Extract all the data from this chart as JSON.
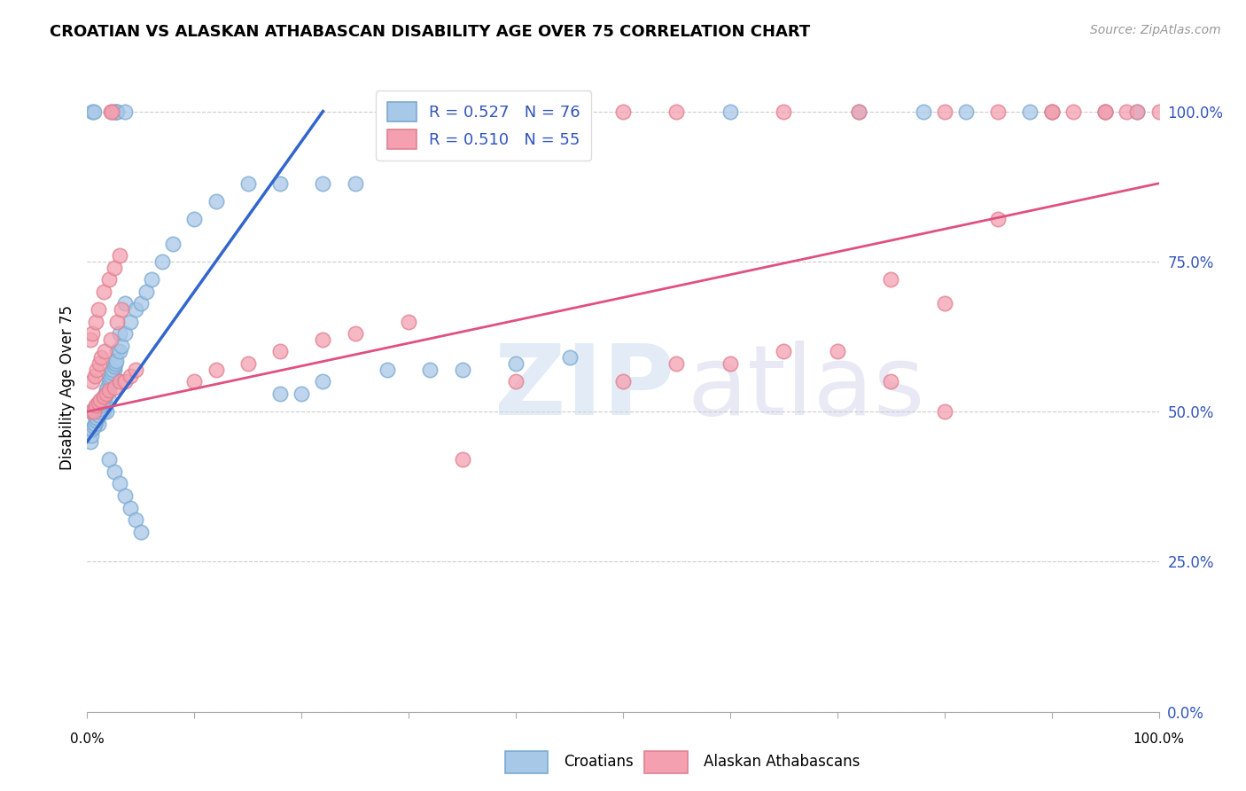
{
  "title": "CROATIAN VS ALASKAN ATHABASCAN DISABILITY AGE OVER 75 CORRELATION CHART",
  "source": "Source: ZipAtlas.com",
  "ylabel": "Disability Age Over 75",
  "ytick_values": [
    0.0,
    25.0,
    50.0,
    75.0,
    100.0
  ],
  "legend_croatian": "R = 0.527   N = 76",
  "legend_alaskan": "R = 0.510   N = 55",
  "legend_label_croatian": "Croatians",
  "legend_label_alaskan": "Alaskan Athabascans",
  "blue_color": "#a8c8e8",
  "pink_color": "#f4a0b0",
  "blue_line_color": "#3366cc",
  "pink_line_color": "#e05080",
  "blue_edge_color": "#7aaad0",
  "pink_edge_color": "#e08090",
  "croatian_x": [
    0.5,
    0.6,
    0.7,
    0.8,
    0.9,
    1.0,
    1.1,
    1.2,
    1.3,
    1.4,
    1.5,
    1.6,
    1.7,
    1.8,
    2.0,
    2.2,
    2.5,
    2.8,
    3.0,
    3.5,
    0.3,
    0.4,
    0.5,
    0.6,
    0.7,
    0.8,
    0.9,
    1.0,
    1.1,
    1.2,
    1.3,
    1.4,
    1.5,
    1.6,
    1.7,
    1.8,
    1.9,
    2.0,
    2.1,
    2.2,
    2.3,
    2.4,
    2.5,
    2.6,
    2.7,
    3.0,
    3.2,
    3.5,
    4.0,
    4.5,
    5.0,
    5.5,
    6.0,
    7.0,
    8.0,
    10.0,
    12.0,
    15.0,
    18.0,
    22.0,
    25.0,
    2.0,
    2.5,
    3.0,
    3.5,
    4.0,
    4.5,
    5.0,
    18.0,
    20.0,
    22.0,
    28.0,
    32.0,
    35.0,
    40.0,
    45.0
  ],
  "croatian_y": [
    50.0,
    50.5,
    49.5,
    49.0,
    48.5,
    48.0,
    50.0,
    51.0,
    50.5,
    50.0,
    50.0,
    50.5,
    51.0,
    50.0,
    52.0,
    55.0,
    57.0,
    60.0,
    63.0,
    68.0,
    45.0,
    46.0,
    47.0,
    47.5,
    48.0,
    48.5,
    49.0,
    49.5,
    50.0,
    50.5,
    51.0,
    51.5,
    52.0,
    52.5,
    53.0,
    53.5,
    54.0,
    55.0,
    55.5,
    56.0,
    56.5,
    57.0,
    57.5,
    58.0,
    58.5,
    60.0,
    61.0,
    63.0,
    65.0,
    67.0,
    68.0,
    70.0,
    72.0,
    75.0,
    78.0,
    82.0,
    85.0,
    88.0,
    88.0,
    88.0,
    88.0,
    42.0,
    40.0,
    38.0,
    36.0,
    34.0,
    32.0,
    30.0,
    53.0,
    53.0,
    55.0,
    57.0,
    57.0,
    57.0,
    58.0,
    59.0
  ],
  "alaskan_x": [
    0.4,
    0.6,
    0.8,
    1.0,
    1.2,
    1.5,
    1.8,
    2.0,
    2.5,
    3.0,
    3.5,
    4.0,
    4.5,
    0.5,
    0.7,
    0.9,
    1.1,
    1.3,
    1.6,
    2.2,
    2.8,
    3.2,
    0.3,
    0.5,
    0.8,
    1.0,
    1.5,
    2.0,
    2.5,
    3.0,
    10.0,
    12.0,
    15.0,
    18.0,
    22.0,
    25.0,
    30.0,
    35.0,
    40.0,
    50.0,
    55.0,
    60.0,
    65.0,
    70.0,
    75.0,
    80.0,
    85.0,
    90.0,
    92.0,
    95.0,
    97.0,
    98.0,
    100.0,
    75.0,
    80.0
  ],
  "alaskan_y": [
    50.0,
    50.0,
    51.0,
    51.5,
    52.0,
    52.5,
    53.0,
    53.5,
    54.0,
    55.0,
    55.0,
    56.0,
    57.0,
    55.0,
    56.0,
    57.0,
    58.0,
    59.0,
    60.0,
    62.0,
    65.0,
    67.0,
    62.0,
    63.0,
    65.0,
    67.0,
    70.0,
    72.0,
    74.0,
    76.0,
    55.0,
    57.0,
    58.0,
    60.0,
    62.0,
    63.0,
    65.0,
    42.0,
    55.0,
    55.0,
    58.0,
    58.0,
    60.0,
    60.0,
    55.0,
    68.0,
    82.0,
    100.0,
    100.0,
    100.0,
    100.0,
    100.0,
    100.0,
    72.0,
    50.0
  ],
  "blue_trendline_x": [
    0.0,
    22.0
  ],
  "blue_trendline_y": [
    45.0,
    100.0
  ],
  "pink_trendline_x": [
    0.0,
    100.0
  ],
  "pink_trendline_y": [
    50.0,
    88.0
  ],
  "xmin": 0.0,
  "xmax": 100.0,
  "ymin": 0.0,
  "ymax": 108.0,
  "top_row_blue_x": [
    0.5,
    0.6,
    2.5,
    2.6,
    2.7,
    2.8,
    3.5,
    45.0,
    60.0,
    72.0,
    78.0,
    82.0,
    88.0,
    90.0,
    95.0,
    98.0
  ],
  "top_row_blue_y": [
    100.0,
    100.0,
    100.0,
    100.0,
    100.0,
    100.0,
    100.0,
    100.0,
    100.0,
    100.0,
    100.0,
    100.0,
    100.0,
    100.0,
    100.0,
    100.0
  ],
  "top_row_pink_x": [
    2.2,
    2.3,
    50.0,
    55.0,
    65.0,
    72.0,
    80.0,
    85.0,
    90.0,
    95.0
  ],
  "top_row_pink_y": [
    100.0,
    100.0,
    100.0,
    100.0,
    100.0,
    100.0,
    100.0,
    100.0,
    100.0,
    100.0
  ]
}
